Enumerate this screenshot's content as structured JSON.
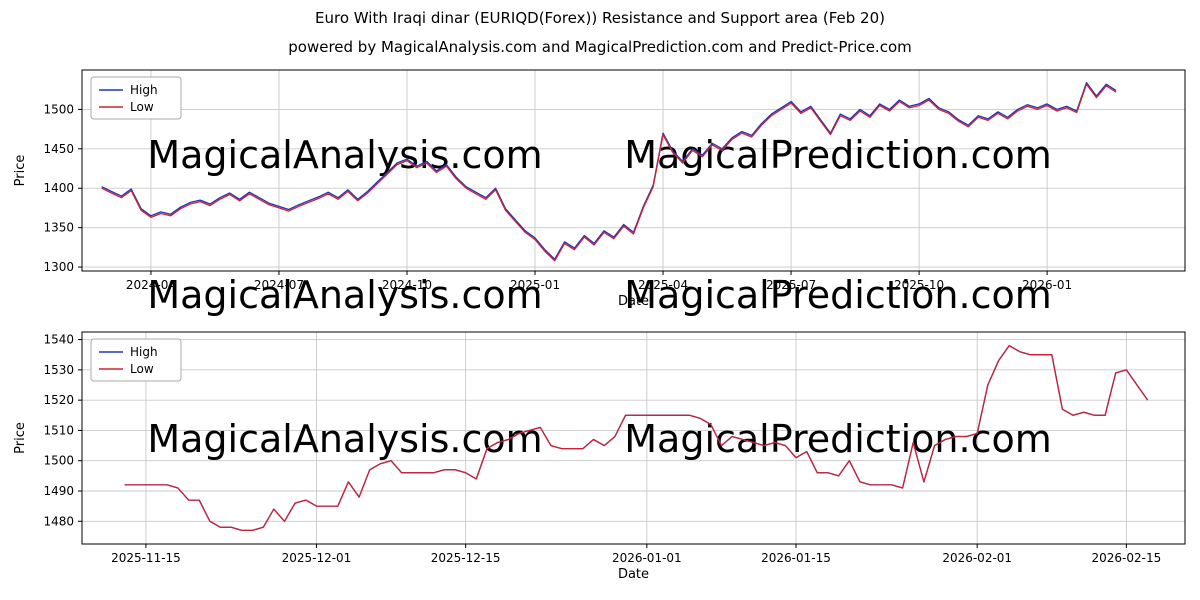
{
  "title": "Euro With Iraqi dinar (EURIQD(Forex)) Resistance and Support area (Feb 20)",
  "subtitle": "powered by MagicalAnalysis.com and MagicalPrediction.com and Predict-Price.com",
  "watermarks": [
    "MagicalAnalysis.com",
    "MagicalPrediction.com"
  ],
  "colors": {
    "high": "#2233bb",
    "low": "#cc2233",
    "grid": "#c9c9c9",
    "spine": "#000000",
    "watermark": "rgba(0,0,0,0.11)",
    "legend_border": "#a8a8a8"
  },
  "chart_data": [
    {
      "type": "line",
      "title": "",
      "xlabel": "Date",
      "ylabel": "Price",
      "legend_position": "upper left",
      "grid": true,
      "x_unit": "weeks",
      "xlim": [
        -2,
        110
      ],
      "ylim": [
        1295,
        1550
      ],
      "y_ticks": [
        1300,
        1350,
        1400,
        1450,
        1500
      ],
      "x_ticks": [
        {
          "pos": 5,
          "label": "2024-04"
        },
        {
          "pos": 18,
          "label": "2024-07"
        },
        {
          "pos": 31,
          "label": "2024-10"
        },
        {
          "pos": 44,
          "label": "2025-01"
        },
        {
          "pos": 57,
          "label": "2025-04"
        },
        {
          "pos": 70,
          "label": "2025-07"
        },
        {
          "pos": 83,
          "label": "2025-10"
        },
        {
          "pos": 96,
          "label": "2026-01"
        }
      ],
      "series": [
        {
          "name": "High",
          "color": "high",
          "values": [
            1402,
            1396,
            1390,
            1399,
            1374,
            1365,
            1370,
            1367,
            1376,
            1382,
            1385,
            1380,
            1388,
            1394,
            1386,
            1395,
            1388,
            1381,
            1377,
            1373,
            1379,
            1384,
            1389,
            1395,
            1388,
            1398,
            1386,
            1396,
            1408,
            1420,
            1432,
            1437,
            1428,
            1434,
            1422,
            1430,
            1414,
            1402,
            1395,
            1388,
            1400,
            1374,
            1360,
            1346,
            1337,
            1322,
            1310,
            1332,
            1324,
            1340,
            1330,
            1346,
            1338,
            1354,
            1344,
            1377,
            1404,
            1470,
            1447,
            1434,
            1450,
            1442,
            1457,
            1450,
            1464,
            1472,
            1467,
            1482,
            1494,
            1502,
            1510,
            1497,
            1504,
            1487,
            1470,
            1494,
            1488,
            1500,
            1492,
            1507,
            1500,
            1512,
            1504,
            1507,
            1514,
            1502,
            1497,
            1487,
            1480,
            1492,
            1488,
            1497,
            1490,
            1500,
            1506,
            1502,
            1507,
            1500,
            1504,
            1498,
            1534,
            1517,
            1532,
            1524
          ]
        },
        {
          "name": "Low",
          "color": "low",
          "values": [
            1400,
            1394,
            1388,
            1397,
            1372,
            1363,
            1368,
            1365,
            1374,
            1380,
            1383,
            1378,
            1386,
            1392,
            1384,
            1393,
            1386,
            1379,
            1375,
            1371,
            1377,
            1382,
            1387,
            1393,
            1386,
            1396,
            1384,
            1394,
            1406,
            1418,
            1430,
            1435,
            1426,
            1432,
            1420,
            1428,
            1412,
            1400,
            1393,
            1386,
            1398,
            1372,
            1358,
            1344,
            1335,
            1320,
            1308,
            1330,
            1322,
            1338,
            1328,
            1344,
            1336,
            1352,
            1342,
            1375,
            1402,
            1468,
            1445,
            1432,
            1448,
            1440,
            1455,
            1448,
            1462,
            1470,
            1465,
            1480,
            1492,
            1500,
            1508,
            1495,
            1502,
            1485,
            1468,
            1492,
            1486,
            1498,
            1490,
            1505,
            1498,
            1510,
            1502,
            1505,
            1512,
            1500,
            1495,
            1485,
            1478,
            1490,
            1486,
            1495,
            1488,
            1498,
            1504,
            1500,
            1505,
            1498,
            1502,
            1496,
            1532,
            1515,
            1530,
            1522
          ]
        }
      ]
    },
    {
      "type": "line",
      "title": "",
      "xlabel": "Date",
      "ylabel": "Price",
      "legend_position": "upper left",
      "grid": true,
      "x_unit": "days",
      "xlim": [
        -4,
        99.5
      ],
      "ylim": [
        1472.5,
        1542.5
      ],
      "y_ticks": [
        1480,
        1490,
        1500,
        1510,
        1520,
        1530,
        1540
      ],
      "x_ticks": [
        {
          "pos": 2,
          "label": "2025-11-15"
        },
        {
          "pos": 18,
          "label": "2025-12-01"
        },
        {
          "pos": 32,
          "label": "2025-12-15"
        },
        {
          "pos": 49,
          "label": "2026-01-01"
        },
        {
          "pos": 63,
          "label": "2026-01-15"
        },
        {
          "pos": 80,
          "label": "2026-02-01"
        },
        {
          "pos": 94,
          "label": "2026-02-15"
        }
      ],
      "series": [
        {
          "name": "High",
          "color": "high",
          "values": [
            1492,
            1492,
            1492,
            1492,
            1492,
            1491,
            1487,
            1487,
            1480,
            1478,
            1478,
            1477,
            1477,
            1478,
            1484,
            1480,
            1486,
            1487,
            1485,
            1485,
            1485,
            1493,
            1488,
            1497,
            1499,
            1500,
            1496,
            1496,
            1496,
            1496,
            1497,
            1497,
            1496,
            1494,
            1504,
            1506,
            1507,
            1509,
            1510,
            1511,
            1505,
            1504,
            1504,
            1504,
            1507,
            1505,
            1508,
            1515,
            1515,
            1515,
            1515,
            1515,
            1515,
            1515,
            1514,
            1512,
            1505,
            1508,
            1507,
            1506,
            1505,
            1506,
            1505,
            1501,
            1503,
            1496,
            1496,
            1495,
            1500,
            1493,
            1492,
            1492,
            1492,
            1491,
            1506,
            1493,
            1505,
            1507,
            1508,
            1508,
            1509,
            1525,
            1533,
            1538,
            1536,
            1535,
            1535,
            1535,
            1517,
            1515,
            1516,
            1515,
            1515,
            1529,
            1530,
            1525,
            1520
          ]
        },
        {
          "name": "Low",
          "color": "low",
          "values": [
            1492,
            1492,
            1492,
            1492,
            1492,
            1491,
            1487,
            1487,
            1480,
            1478,
            1478,
            1477,
            1477,
            1478,
            1484,
            1480,
            1486,
            1487,
            1485,
            1485,
            1485,
            1493,
            1488,
            1497,
            1499,
            1500,
            1496,
            1496,
            1496,
            1496,
            1497,
            1497,
            1496,
            1494,
            1504,
            1506,
            1507,
            1509,
            1510,
            1511,
            1505,
            1504,
            1504,
            1504,
            1507,
            1505,
            1508,
            1515,
            1515,
            1515,
            1515,
            1515,
            1515,
            1515,
            1514,
            1512,
            1505,
            1508,
            1507,
            1506,
            1505,
            1506,
            1505,
            1501,
            1503,
            1496,
            1496,
            1495,
            1500,
            1493,
            1492,
            1492,
            1492,
            1491,
            1506,
            1493,
            1505,
            1507,
            1508,
            1508,
            1509,
            1525,
            1533,
            1538,
            1536,
            1535,
            1535,
            1535,
            1517,
            1515,
            1516,
            1515,
            1515,
            1529,
            1530,
            1525,
            1520
          ]
        }
      ]
    }
  ]
}
